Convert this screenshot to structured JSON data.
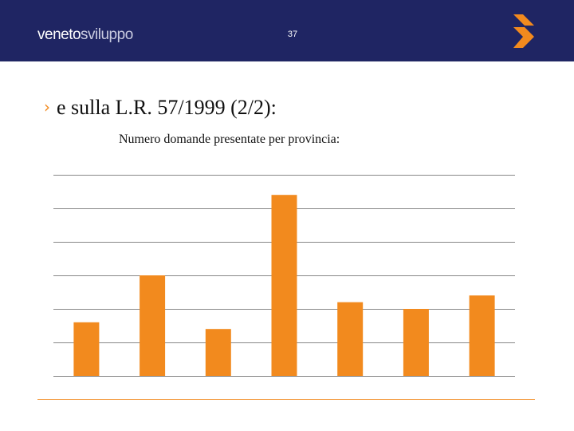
{
  "header": {
    "brand_main": "veneto",
    "brand_accent": "sviluppo",
    "page_number": "37",
    "logo_icon": "stacked-chevrons-logo-icon"
  },
  "slide": {
    "bullet_icon": "chevron-right-icon",
    "heading": "e sulla L.R. 57/1999 (2/2):",
    "subtitle": "Numero domande presentate per provincia:"
  },
  "colors": {
    "header_bg": "#1f2563",
    "accent": "#f28a1e",
    "grid": "#888888",
    "footer_rule": "#f5a24c"
  },
  "chart_data": {
    "type": "bar",
    "title": "Numero domande presentate per provincia:",
    "xlabel": "",
    "ylabel": "",
    "categories": [
      "",
      "",
      "",
      "",
      "",
      "",
      ""
    ],
    "series": [
      {
        "values": [
          16,
          30,
          14,
          54,
          22,
          20,
          24
        ],
        "color": "#f28a1e"
      }
    ],
    "ylim": [
      0,
      60
    ],
    "gridlines": [
      0,
      10,
      20,
      30,
      40,
      50,
      60
    ],
    "grid": true,
    "legend": "none",
    "tick_labels_visible": false
  }
}
